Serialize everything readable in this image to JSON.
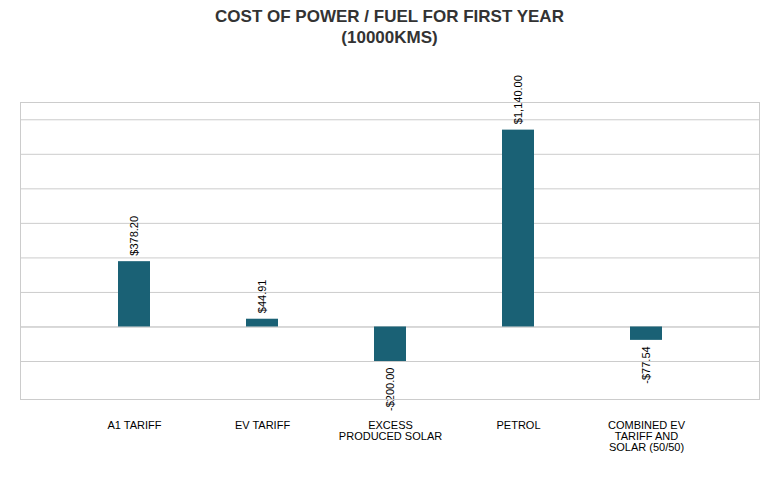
{
  "chart_data": {
    "type": "bar",
    "title": "COST OF POWER / FUEL FOR FIRST YEAR\n(10000KMS)",
    "categories": [
      "A1 TARIFF",
      "EV TARIFF",
      "EXCESS\nPRODUCED SOLAR",
      "PETROL",
      "COMBINED EV\nTARIFF AND\nSOLAR (50/50)"
    ],
    "values": [
      378.2,
      44.91,
      -200.0,
      1140.0,
      -77.54
    ],
    "value_labels": [
      "$378.20",
      "$44.91",
      "-$200.00",
      "$1,140.00",
      "-$77.54"
    ],
    "color": "#1a6175",
    "ylim": [
      -420,
      1300
    ],
    "yticks": [
      -200,
      0,
      200,
      400,
      600,
      800,
      1000,
      1200
    ],
    "grid": true,
    "data_labels": true,
    "tick_labels": "x"
  }
}
